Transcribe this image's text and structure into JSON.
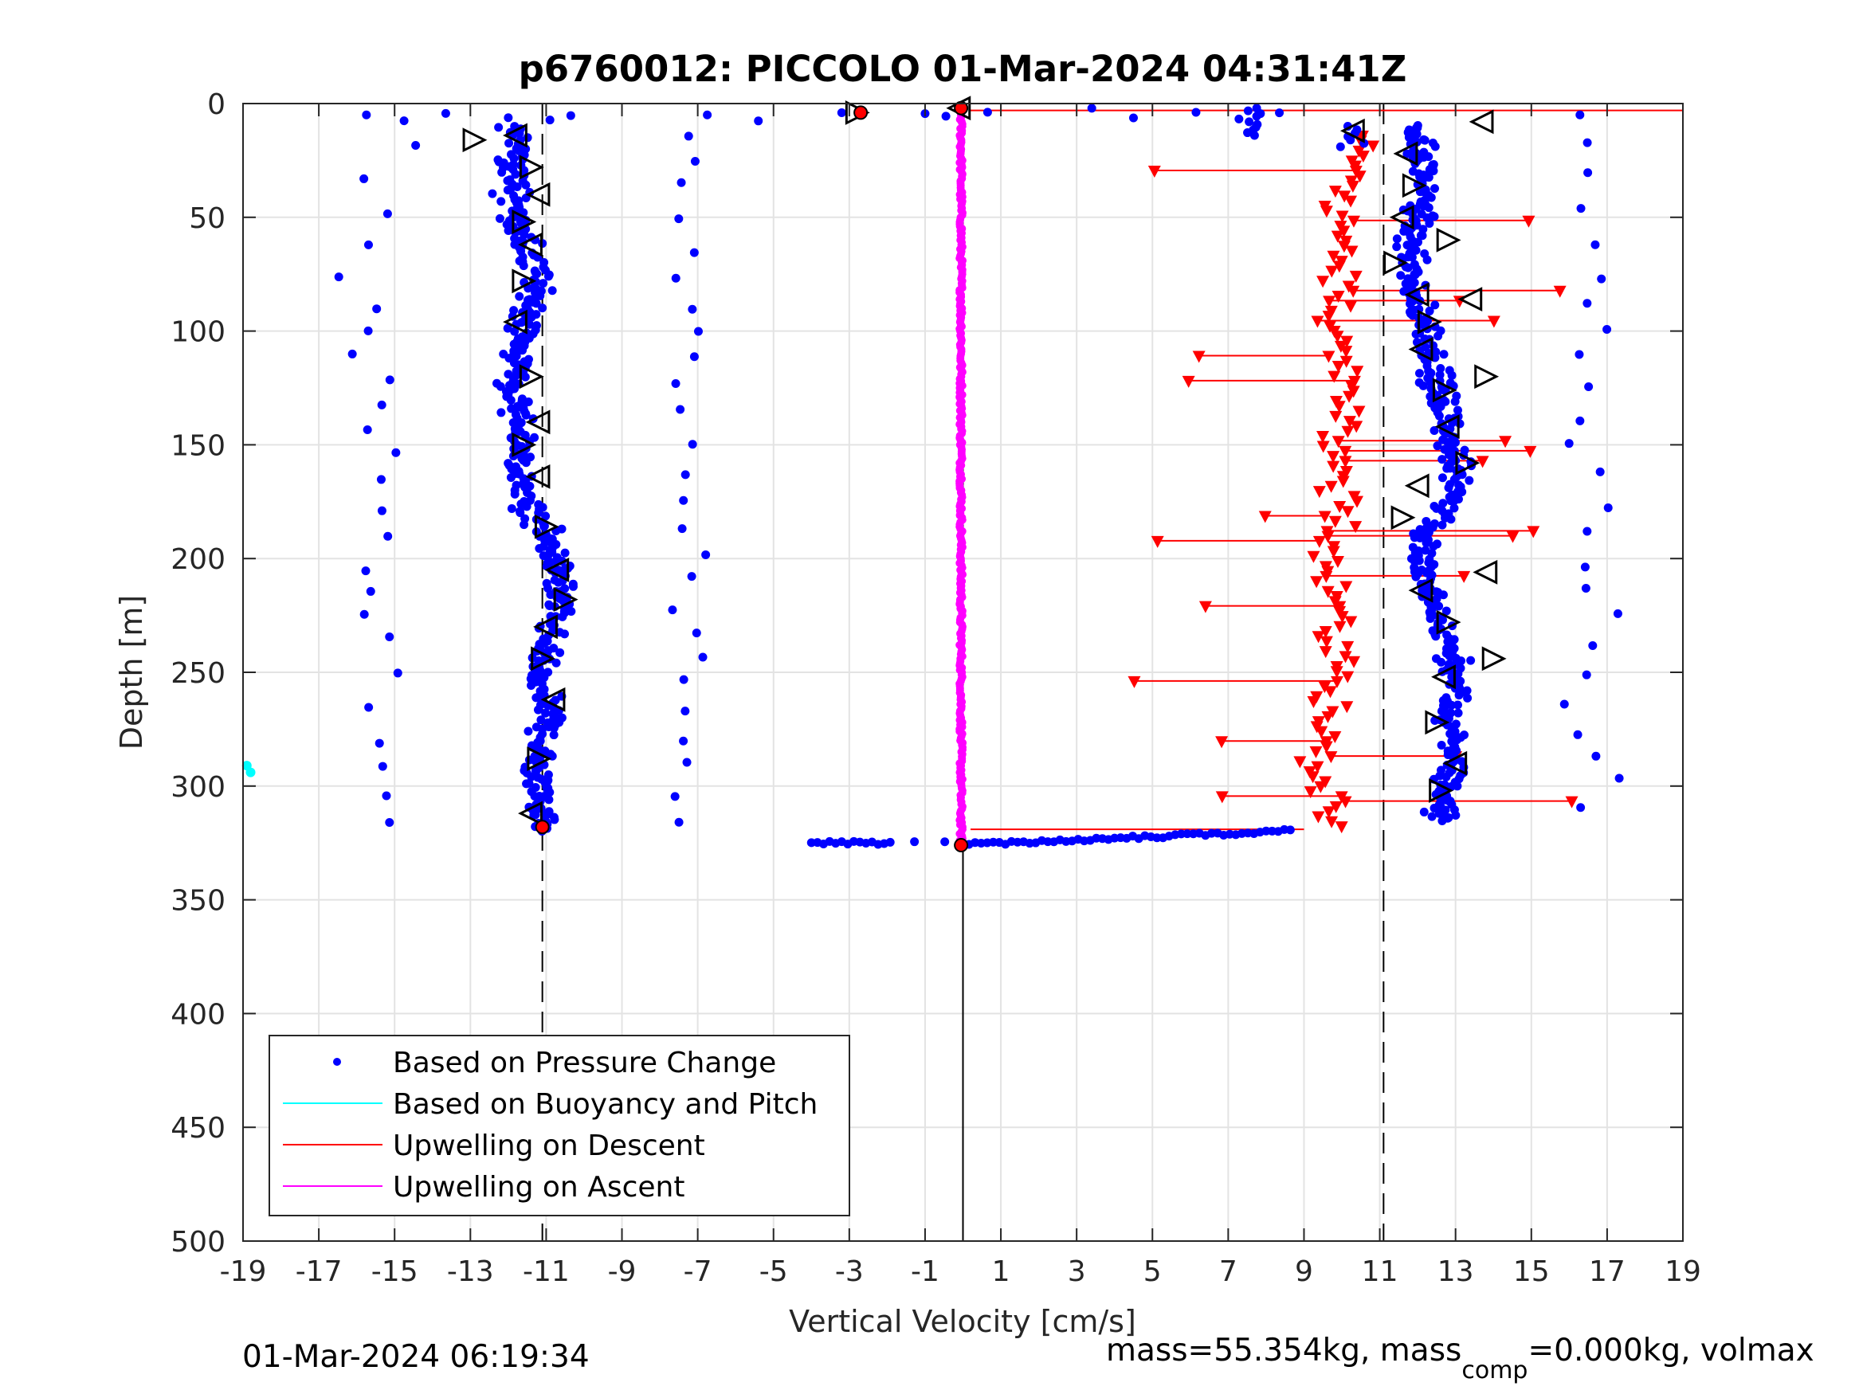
{
  "chart_data": {
    "type": "scatter",
    "title": "p6760012: PICCOLO 01-Mar-2024 04:31:41Z",
    "xlabel": "Vertical Velocity [cm/s]",
    "ylabel": "Depth [m]",
    "xlim": [
      -19,
      19
    ],
    "ylim": [
      0,
      500
    ],
    "y_reversed": true,
    "xticks": [
      "-19",
      "-17",
      "-15",
      "-13",
      "-11",
      "-9",
      "-7",
      "-5",
      "-3",
      "-1",
      "1",
      "3",
      "5",
      "7",
      "9",
      "11",
      "13",
      "15",
      "17",
      "19"
    ],
    "yticks": [
      "0",
      "50",
      "100",
      "150",
      "200",
      "250",
      "300",
      "350",
      "400",
      "450",
      "500"
    ],
    "grid": true,
    "legend_position": "bottom-left",
    "legend": [
      "Based on Pressure Change",
      "Based on Buoyancy and Pitch",
      "Upwelling on Descent",
      "Upwelling on Ascent"
    ],
    "reference_lines": {
      "vertical_solid_x": 0,
      "vertical_dashed_x": [
        -11.1,
        11.1
      ]
    },
    "series": [
      {
        "name": "Based on Pressure Change",
        "color": "#0000ff",
        "clusters": [
          {
            "label": "descent main",
            "x_center": [
              -11.8,
              -11.9,
              -11.6,
              -11.2,
              -11.6,
              -11.9,
              -11.7,
              -11.7,
              -11.0,
              -10.6,
              -10.9,
              -11.2,
              -10.9,
              -11.3,
              -11.0,
              -11.2
            ],
            "depth": [
              10,
              40,
              60,
              80,
              100,
              125,
              150,
              170,
              190,
              210,
              230,
              250,
              270,
              290,
              310,
              320
            ]
          },
          {
            "label": "ascent main",
            "x_center": [
              12.0,
              12.2,
              11.8,
              11.7,
              12.3,
              12.5,
              12.9,
              13.1,
              12.2,
              12.1,
              12.6,
              13.0,
              12.8,
              13.0,
              12.8,
              12.6
            ],
            "depth": [
              10,
              40,
              60,
              80,
              100,
              125,
              150,
              170,
              190,
              210,
              230,
              250,
              270,
              290,
              300,
              315
            ]
          },
          {
            "label": "near-surface and bottom turns",
            "x": [
              -3.5,
              -2.5,
              -1.5,
              0.5,
              1.5,
              3.0,
              5.0,
              7.0,
              8.5,
              7.8,
              7.6
            ],
            "depth": [
              322,
              324,
              325,
              325,
              325,
              324,
              323,
              322,
              320,
              2,
              3
            ]
          }
        ]
      },
      {
        "name": "Based on Buoyancy and Pitch",
        "color": "#00ffff",
        "points": [
          {
            "x": -18.9,
            "depth": 291
          },
          {
            "x": -18.8,
            "depth": 294
          }
        ]
      },
      {
        "name": "Upwelling on Descent",
        "color": "#ff0000",
        "x_center_by_depth": {
          "depth": [
            15,
            50,
            100,
            150,
            200,
            250,
            290,
            315
          ],
          "x": [
            10.5,
            10.0,
            9.9,
            10.0,
            9.8,
            9.9,
            9.3,
            9.5
          ]
        },
        "arrow_span_x": [
          4.5,
          16.5
        ]
      },
      {
        "name": "Upwelling on Ascent",
        "color": "#ff00ff",
        "x_constant": -0.05,
        "depth_range": [
          2,
          325
        ]
      }
    ]
  },
  "footer": {
    "timestamp": "01-Mar-2024 06:19:34",
    "mass_prefix": "mass=55.354kg, mass",
    "mass_sub": "comp",
    "mass_suffix": "=0.000kg, volmax"
  }
}
